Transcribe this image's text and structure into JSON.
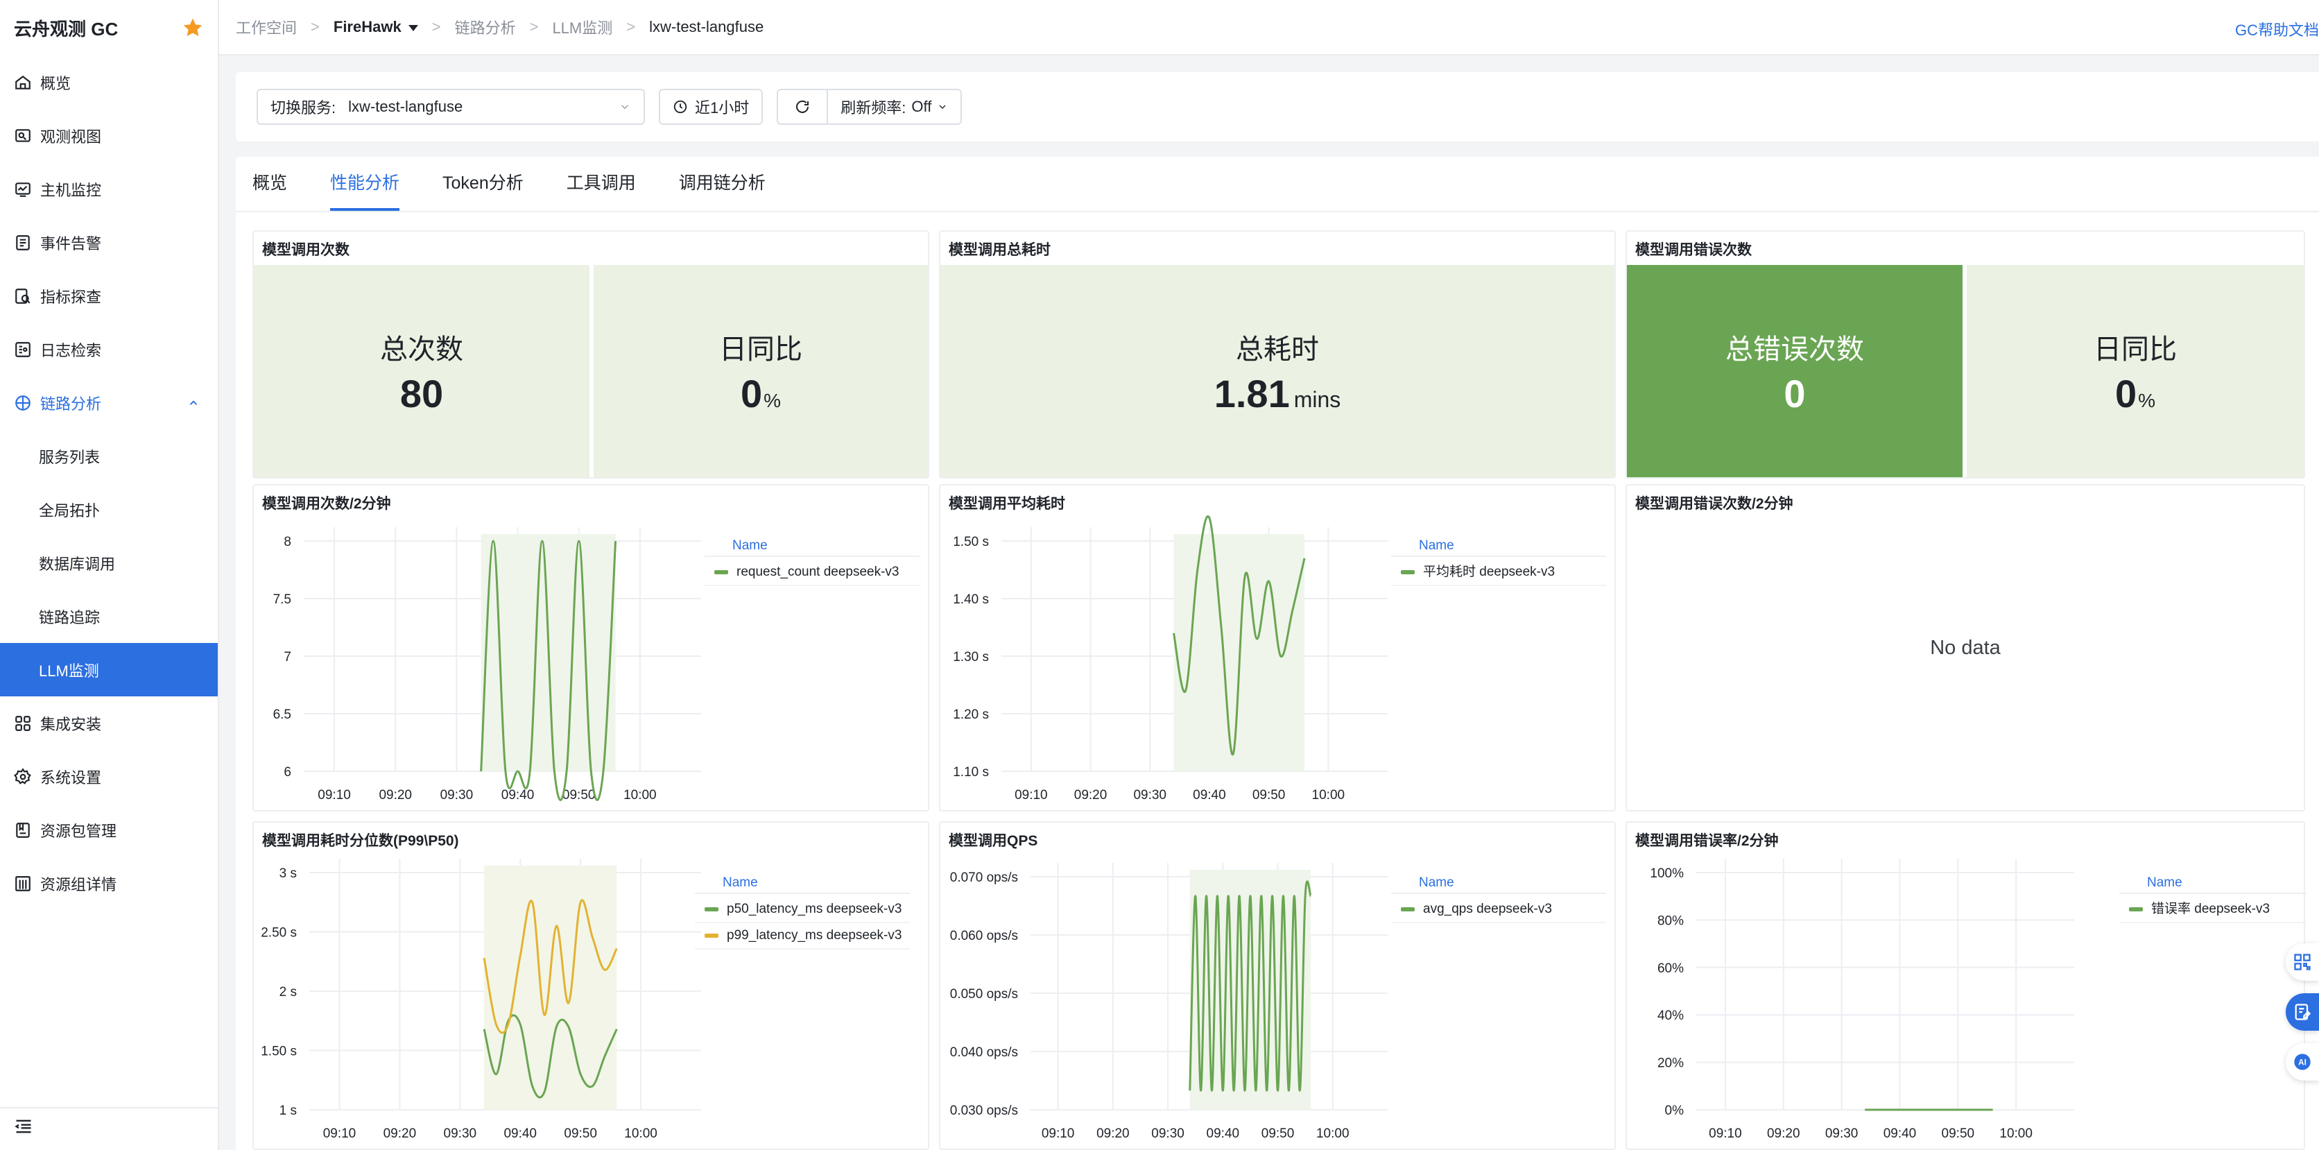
{
  "app": {
    "title": "云舟观测 GC"
  },
  "sidebar": {
    "items": [
      {
        "label": "概览",
        "icon": "home-icon"
      },
      {
        "label": "观测视图",
        "icon": "dashboard-icon"
      },
      {
        "label": "主机监控",
        "icon": "host-monitor-icon"
      },
      {
        "label": "事件告警",
        "icon": "alert-icon"
      },
      {
        "label": "指标探查",
        "icon": "metrics-icon"
      },
      {
        "label": "日志检索",
        "icon": "log-icon"
      },
      {
        "label": "链路分析",
        "icon": "trace-icon"
      },
      {
        "label": "服务列表"
      },
      {
        "label": "全局拓扑"
      },
      {
        "label": "数据库调用"
      },
      {
        "label": "链路追踪"
      },
      {
        "label": "LLM监测"
      },
      {
        "label": "集成安装",
        "icon": "integration-icon"
      },
      {
        "label": "系统设置",
        "icon": "gear-icon"
      },
      {
        "label": "资源包管理",
        "icon": "package-icon"
      },
      {
        "label": "资源组详情",
        "icon": "building-icon"
      }
    ]
  },
  "breadcrumb": {
    "workspace": "工作空间",
    "org": "FireHawk",
    "section": "链路分析",
    "page": "LLM监测",
    "current": "lxw-test-langfuse"
  },
  "header": {
    "help": "GC帮助文档"
  },
  "filters": {
    "service_label": "切换服务:",
    "service_value": "lxw-test-langfuse",
    "time_range": "近1小时",
    "refresh_label": "刷新频率:",
    "refresh_value": "Off"
  },
  "tabs": [
    "概览",
    "性能分析",
    "Token分析",
    "工具调用",
    "调用链分析"
  ],
  "stats": {
    "calls": {
      "title": "模型调用次数",
      "total_label": "总次数",
      "total_value": "80",
      "dod_label": "日同比",
      "dod_value": "0",
      "dod_unit": "%"
    },
    "duration": {
      "title": "模型调用总耗时",
      "label": "总耗时",
      "value": "1.81",
      "unit": "mins"
    },
    "errors": {
      "title": "模型调用错误次数",
      "total_label": "总错误次数",
      "total_value": "0",
      "dod_label": "日同比",
      "dod_value": "0",
      "dod_unit": "%"
    }
  },
  "colors": {
    "accent": "#2b6fe0",
    "green": "#6aa553",
    "yellow": "#e3b231",
    "stat_bg": "#ebf2e3"
  },
  "legend_header": "Name",
  "no_data_text": "No data",
  "chart_data": [
    {
      "id": "calls",
      "type": "line",
      "title": "模型调用次数/2分钟",
      "x_ticks": [
        "09:10",
        "09:20",
        "09:30",
        "09:40",
        "09:50",
        "10:00"
      ],
      "y_ticks": [
        "6",
        "6.5",
        "7",
        "7.5",
        "8"
      ],
      "ylim": [
        6,
        8
      ],
      "x": [
        "09:34",
        "09:36",
        "09:38",
        "09:40",
        "09:42",
        "09:44",
        "09:46",
        "09:48",
        "09:50",
        "09:52",
        "09:54",
        "09:56"
      ],
      "series": [
        {
          "name": "request_count deepseek-v3",
          "color": "#6aa553",
          "values": [
            6,
            8,
            6,
            6,
            6,
            8,
            6,
            6,
            8,
            6,
            6,
            8
          ]
        }
      ]
    },
    {
      "id": "avgdur",
      "type": "line",
      "title": "模型调用平均耗时",
      "x_ticks": [
        "09:10",
        "09:20",
        "09:30",
        "09:40",
        "09:50",
        "10:00"
      ],
      "y_ticks": [
        "1.10 s",
        "1.20 s",
        "1.30 s",
        "1.40 s",
        "1.50 s"
      ],
      "ylim": [
        1.1,
        1.5
      ],
      "x": [
        "09:34",
        "09:36",
        "09:38",
        "09:40",
        "09:42",
        "09:44",
        "09:46",
        "09:48",
        "09:50",
        "09:52",
        "09:54",
        "09:56"
      ],
      "series": [
        {
          "name": "平均耗时 deepseek-v3",
          "color": "#6aa553",
          "values": [
            1.34,
            1.24,
            1.45,
            1.54,
            1.35,
            1.13,
            1.44,
            1.33,
            1.43,
            1.3,
            1.38,
            1.47
          ]
        }
      ]
    },
    {
      "id": "errcount",
      "type": "line",
      "title": "模型调用错误次数/2分钟",
      "series": []
    },
    {
      "id": "latency",
      "type": "line",
      "title": "模型调用耗时分位数(P99\\P50)",
      "x_ticks": [
        "09:10",
        "09:20",
        "09:30",
        "09:40",
        "09:50",
        "10:00"
      ],
      "y_ticks": [
        "1 s",
        "1.50 s",
        "2 s",
        "2.50 s",
        "3 s"
      ],
      "ylim": [
        1,
        3
      ],
      "x": [
        "09:34",
        "09:36",
        "09:38",
        "09:40",
        "09:42",
        "09:44",
        "09:46",
        "09:48",
        "09:50",
        "09:52",
        "09:54",
        "09:56"
      ],
      "series": [
        {
          "name": "p50_latency_ms deepseek-v3",
          "color": "#6aa553",
          "values": [
            1.68,
            1.3,
            1.75,
            1.72,
            1.2,
            1.15,
            1.7,
            1.7,
            1.3,
            1.2,
            1.45,
            1.68
          ]
        },
        {
          "name": "p99_latency_ms deepseek-v3",
          "color": "#e3b231",
          "values": [
            2.28,
            1.72,
            1.72,
            2.3,
            2.75,
            1.8,
            2.55,
            1.9,
            2.75,
            2.45,
            2.18,
            2.36
          ]
        }
      ]
    },
    {
      "id": "qps",
      "type": "line",
      "title": "模型调用QPS",
      "x_ticks": [
        "09:10",
        "09:20",
        "09:30",
        "09:40",
        "09:50",
        "10:00"
      ],
      "y_ticks": [
        "0.030 ops/s",
        "0.040 ops/s",
        "0.050 ops/s",
        "0.060 ops/s",
        "0.070 ops/s"
      ],
      "ylim": [
        0.03,
        0.07
      ],
      "x": [
        "09:34",
        "09:35",
        "09:36",
        "09:37",
        "09:38",
        "09:39",
        "09:40",
        "09:41",
        "09:42",
        "09:43",
        "09:44",
        "09:45",
        "09:46",
        "09:47",
        "09:48",
        "09:49",
        "09:50",
        "09:51",
        "09:52",
        "09:53",
        "09:54",
        "09:55",
        "09:56"
      ],
      "series": [
        {
          "name": "avg_qps deepseek-v3",
          "color": "#6aa553",
          "values": [
            0.0333,
            0.0667,
            0.0333,
            0.0667,
            0.0333,
            0.0667,
            0.0333,
            0.0667,
            0.0333,
            0.0667,
            0.0333,
            0.0667,
            0.0333,
            0.0667,
            0.0333,
            0.0667,
            0.0333,
            0.0667,
            0.0333,
            0.0667,
            0.0333,
            0.0667,
            0.0667
          ]
        }
      ]
    },
    {
      "id": "errrate",
      "type": "line",
      "title": "模型调用错误率/2分钟",
      "x_ticks": [
        "09:10",
        "09:20",
        "09:30",
        "09:40",
        "09:50",
        "10:00"
      ],
      "y_ticks": [
        "0%",
        "20%",
        "40%",
        "60%",
        "80%",
        "100%"
      ],
      "ylim": [
        0,
        100
      ],
      "x": [
        "09:34",
        "09:36",
        "09:38",
        "09:40",
        "09:42",
        "09:44",
        "09:46",
        "09:48",
        "09:50",
        "09:52",
        "09:54",
        "09:56"
      ],
      "series": [
        {
          "name": "错误率 deepseek-v3",
          "color": "#6aa553",
          "values": [
            0,
            0,
            0,
            0,
            0,
            0,
            0,
            0,
            0,
            0,
            0,
            0
          ]
        }
      ]
    }
  ]
}
